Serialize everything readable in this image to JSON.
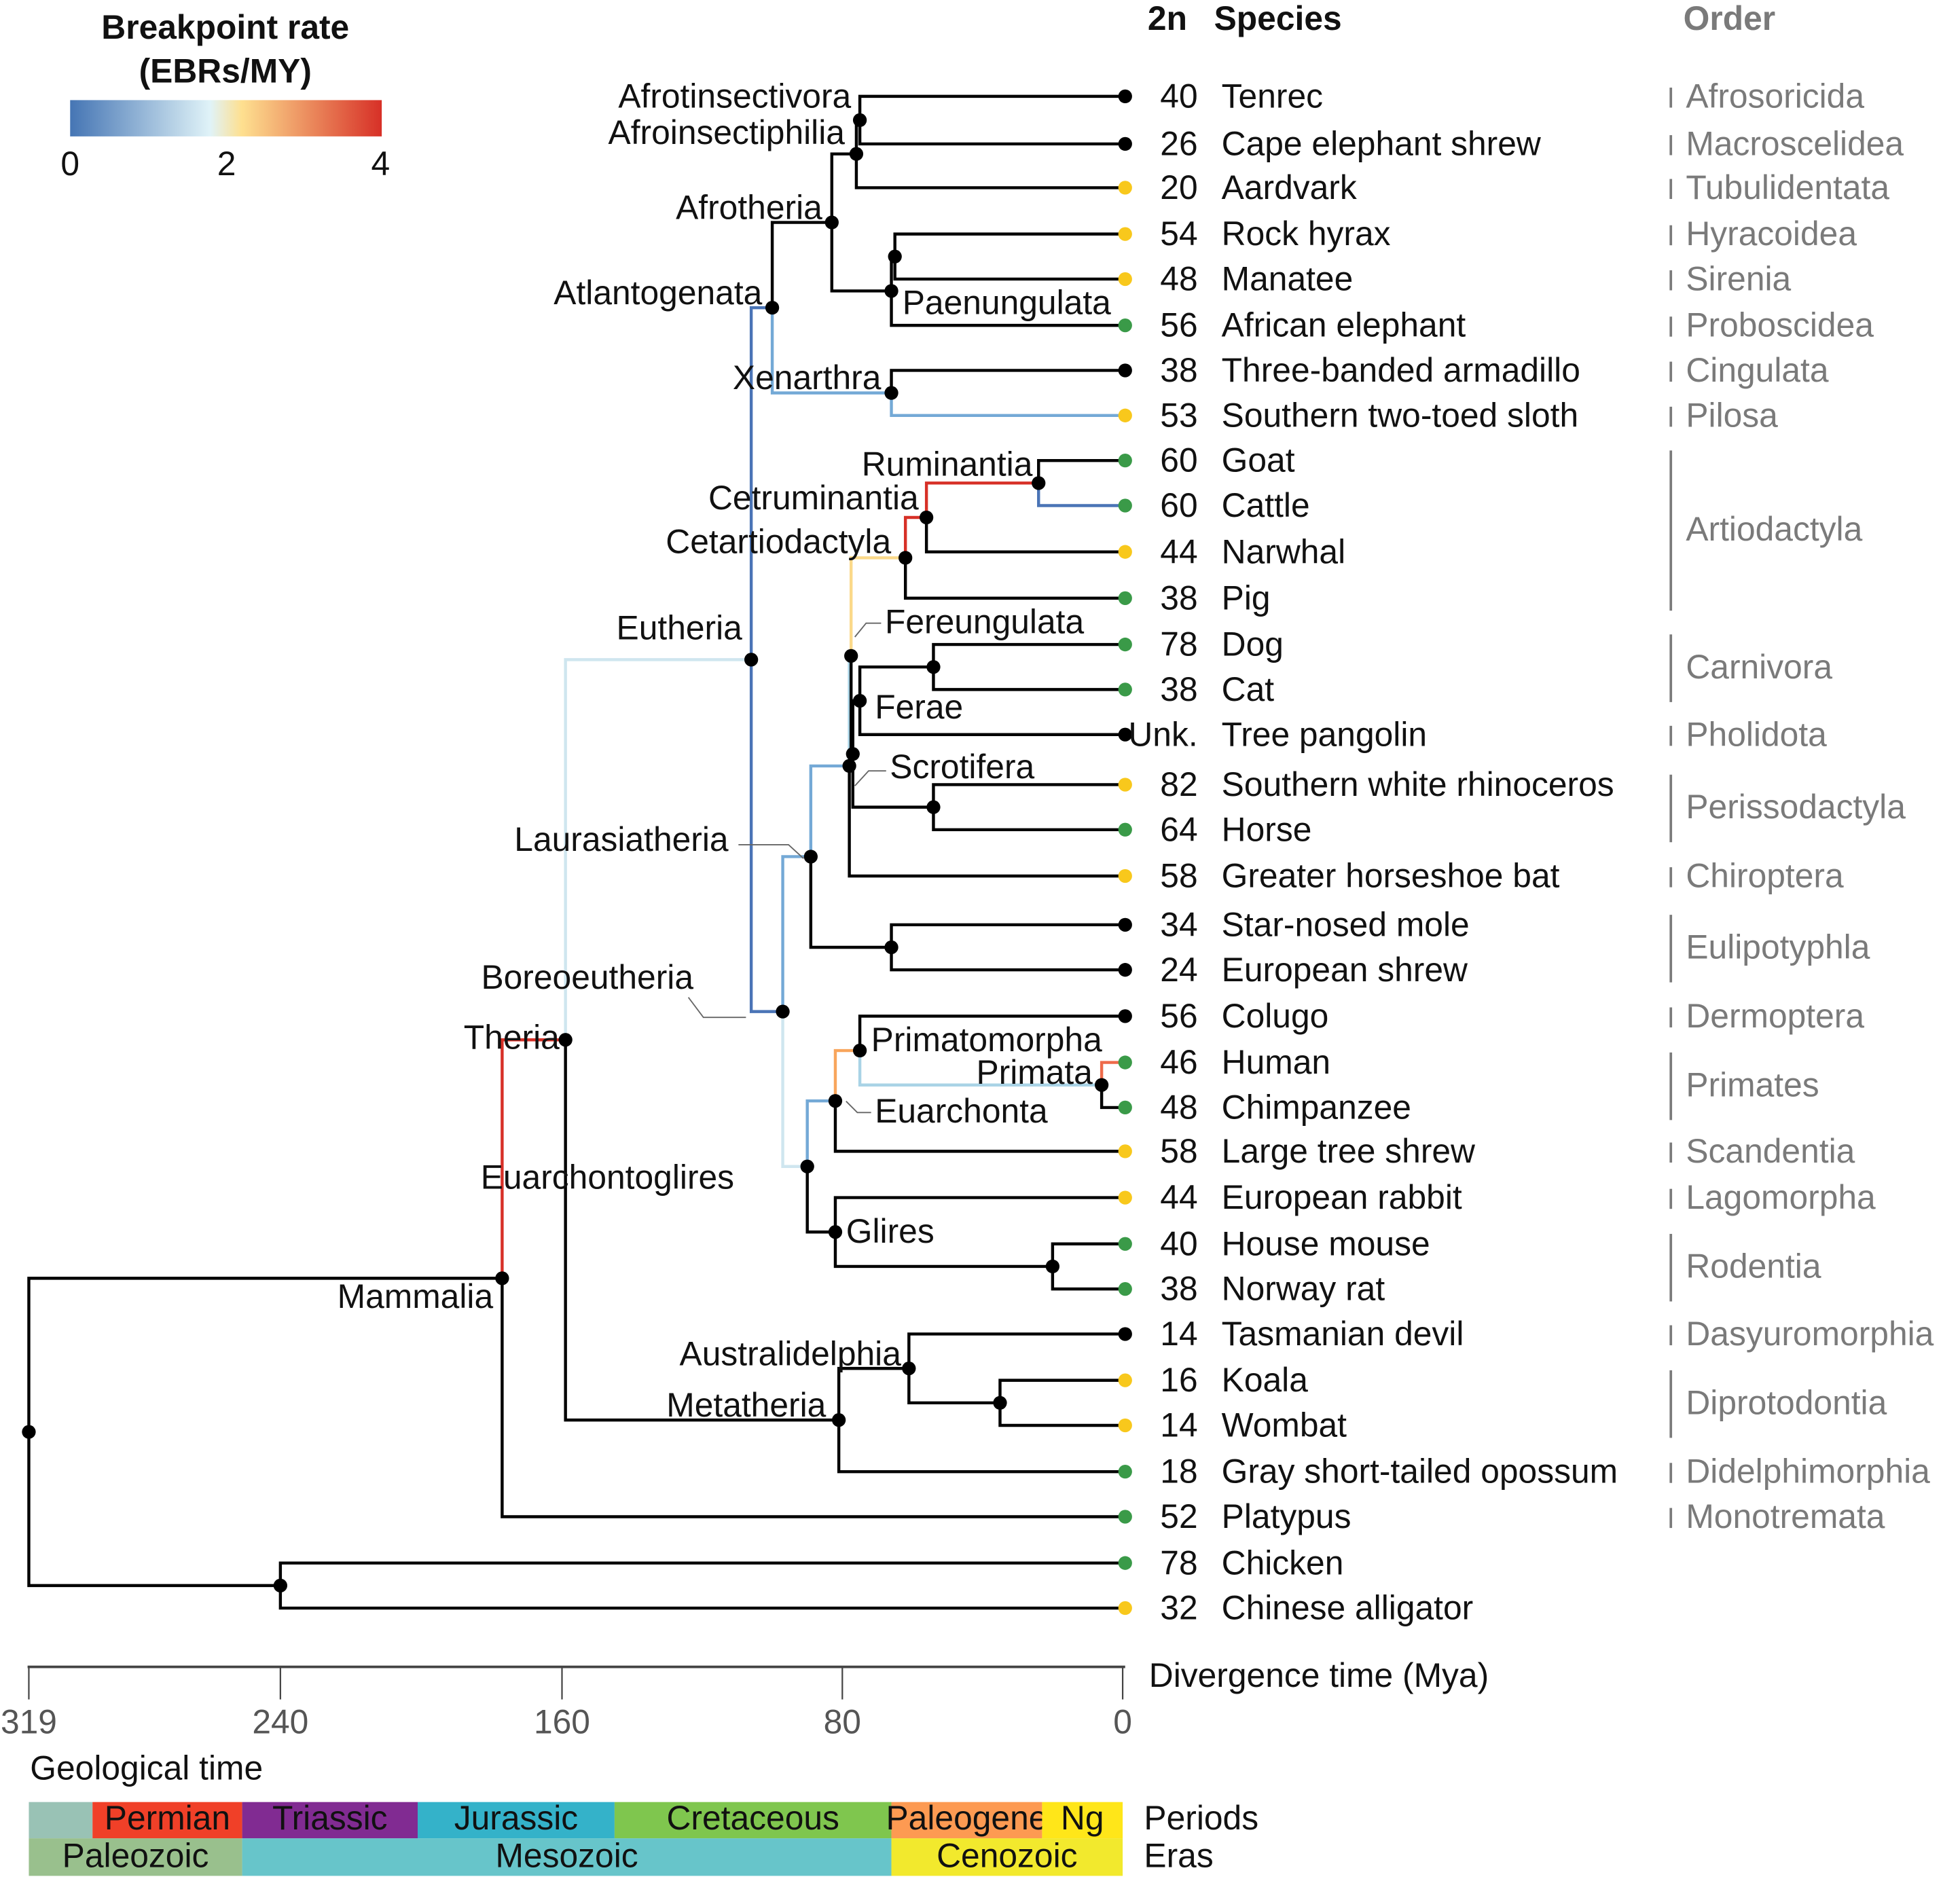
{
  "legend": {
    "title_line1": "Breakpoint rate",
    "title_line2": "(EBRs/MY)",
    "ticks": [
      "0",
      "2",
      "4"
    ],
    "gradient_colors": [
      "#4575b4",
      "#e0f3f8",
      "#fee090",
      "#d73027"
    ]
  },
  "headers": {
    "chromosomes": "2n",
    "species": "Species",
    "order": "Order"
  },
  "leaf_dot_colors": {
    "green": "#3a9a48",
    "yellow": "#f8c81c",
    "black": "#000000"
  },
  "leaves": [
    {
      "n": "40",
      "name": "Tenrec",
      "dot": "black"
    },
    {
      "n": "26",
      "name": "Cape elephant shrew",
      "dot": "black"
    },
    {
      "n": "20",
      "name": "Aardvark",
      "dot": "yellow"
    },
    {
      "n": "54",
      "name": "Rock hyrax",
      "dot": "yellow"
    },
    {
      "n": "48",
      "name": "Manatee",
      "dot": "yellow"
    },
    {
      "n": "56",
      "name": "African elephant",
      "dot": "green"
    },
    {
      "n": "38",
      "name": "Three-banded armadillo",
      "dot": "black"
    },
    {
      "n": "53",
      "name": "Southern two-toed sloth",
      "dot": "yellow"
    },
    {
      "n": "60",
      "name": "Goat",
      "dot": "green"
    },
    {
      "n": "60",
      "name": "Cattle",
      "dot": "green"
    },
    {
      "n": "44",
      "name": "Narwhal",
      "dot": "yellow"
    },
    {
      "n": "38",
      "name": "Pig",
      "dot": "green"
    },
    {
      "n": "78",
      "name": "Dog",
      "dot": "green"
    },
    {
      "n": "38",
      "name": "Cat",
      "dot": "green"
    },
    {
      "n": "Unk.",
      "name": "Tree pangolin",
      "dot": "black"
    },
    {
      "n": "82",
      "name": "Southern white rhinoceros",
      "dot": "yellow"
    },
    {
      "n": "64",
      "name": "Horse",
      "dot": "green"
    },
    {
      "n": "58",
      "name": "Greater horseshoe bat",
      "dot": "yellow"
    },
    {
      "n": "34",
      "name": "Star-nosed mole",
      "dot": "black"
    },
    {
      "n": "24",
      "name": "European shrew",
      "dot": "black"
    },
    {
      "n": "56",
      "name": "Colugo",
      "dot": "black"
    },
    {
      "n": "46",
      "name": "Human",
      "dot": "green"
    },
    {
      "n": "48",
      "name": "Chimpanzee",
      "dot": "green"
    },
    {
      "n": "58",
      "name": "Large tree shrew",
      "dot": "yellow"
    },
    {
      "n": "44",
      "name": "European rabbit",
      "dot": "yellow"
    },
    {
      "n": "40",
      "name": "House mouse",
      "dot": "green"
    },
    {
      "n": "38",
      "name": "Norway rat",
      "dot": "green"
    },
    {
      "n": "14",
      "name": "Tasmanian devil",
      "dot": "black"
    },
    {
      "n": "16",
      "name": "Koala",
      "dot": "yellow"
    },
    {
      "n": "14",
      "name": "Wombat",
      "dot": "yellow"
    },
    {
      "n": "18",
      "name": "Gray short-tailed opossum",
      "dot": "green"
    },
    {
      "n": "52",
      "name": "Platypus",
      "dot": "green"
    },
    {
      "n": "78",
      "name": "Chicken",
      "dot": "green"
    },
    {
      "n": "32",
      "name": "Chinese alligator",
      "dot": "yellow"
    }
  ],
  "orders": [
    {
      "name": "Afrosoricida",
      "from": 0,
      "to": 0
    },
    {
      "name": "Macroscelidea",
      "from": 1,
      "to": 1
    },
    {
      "name": "Tubulidentata",
      "from": 2,
      "to": 2
    },
    {
      "name": "Hyracoidea",
      "from": 3,
      "to": 3
    },
    {
      "name": "Sirenia",
      "from": 4,
      "to": 4
    },
    {
      "name": "Proboscidea",
      "from": 5,
      "to": 5
    },
    {
      "name": "Cingulata",
      "from": 6,
      "to": 6
    },
    {
      "name": "Pilosa",
      "from": 7,
      "to": 7
    },
    {
      "name": "Artiodactyla",
      "from": 8,
      "to": 11
    },
    {
      "name": "Carnivora",
      "from": 12,
      "to": 13
    },
    {
      "name": "Pholidota",
      "from": 14,
      "to": 14
    },
    {
      "name": "Perissodactyla",
      "from": 15,
      "to": 16
    },
    {
      "name": "Chiroptera",
      "from": 17,
      "to": 17
    },
    {
      "name": "Eulipotyphla",
      "from": 18,
      "to": 19
    },
    {
      "name": "Dermoptera",
      "from": 20,
      "to": 20
    },
    {
      "name": "Primates",
      "from": 21,
      "to": 22
    },
    {
      "name": "Scandentia",
      "from": 23,
      "to": 23
    },
    {
      "name": "Lagomorpha",
      "from": 24,
      "to": 24
    },
    {
      "name": "Rodentia",
      "from": 25,
      "to": 26
    },
    {
      "name": "Dasyuromorphia",
      "from": 27,
      "to": 27
    },
    {
      "name": "Diprotodontia",
      "from": 28,
      "to": 29
    },
    {
      "name": "Didelphimorphia",
      "from": 30,
      "to": 30
    },
    {
      "name": "Monotremata",
      "from": 31,
      "to": 31
    }
  ],
  "tree": {
    "id": "root",
    "age": 319,
    "children": [
      {
        "id": "mammalia",
        "label": "Mammalia",
        "age": 177,
        "children": [
          {
            "id": "theria",
            "label": "Theria",
            "age": 159,
            "color": "#d73027",
            "children": [
              {
                "id": "eutheria",
                "label": "Eutheria",
                "age": 106,
                "color": "#cfe6ef",
                "children": [
                  {
                    "id": "atlantogenata",
                    "label": "Atlantogenata",
                    "age": 100,
                    "color": "#4a74b6",
                    "children": [
                      {
                        "id": "afrotheria",
                        "label": "Afrotheria",
                        "age": 83,
                        "children": [
                          {
                            "id": "afroinsectiphilia",
                            "label": "Afroinsectiphilia",
                            "age": 76,
                            "children": [
                              {
                                "id": "afrotinsectivora",
                                "label": "Afrotinsectivora",
                                "age": 75,
                                "children": [
                                  {
                                    "leaf": 0
                                  },
                                  {
                                    "leaf": 1
                                  }
                                ]
                              },
                              {
                                "leaf": 2
                              }
                            ]
                          },
                          {
                            "id": "paenungulata",
                            "label": "Paenungulata",
                            "age": 66,
                            "children": [
                              {
                                "id": "hyrax_manatee",
                                "age": 65,
                                "children": [
                                  {
                                    "leaf": 3
                                  },
                                  {
                                    "leaf": 4
                                  }
                                ]
                              },
                              {
                                "leaf": 5
                              }
                            ]
                          }
                        ]
                      },
                      {
                        "id": "xenarthra",
                        "label": "Xenarthra",
                        "age": 66,
                        "color": "#74a9d6",
                        "children": [
                          {
                            "leaf": 6
                          },
                          {
                            "leaf": 7,
                            "color": "#74a9d6"
                          }
                        ]
                      }
                    ]
                  },
                  {
                    "id": "boreoeutheria",
                    "label": "Boreoeutheria",
                    "age": 97,
                    "color": "#4a74b6",
                    "children": [
                      {
                        "id": "laurasiatheria",
                        "label": "Laurasiatheria",
                        "age": 89,
                        "color": "#74a9d6",
                        "children": [
                          {
                            "id": "scrotifera",
                            "label": "Scrotifera",
                            "age": 78,
                            "color": "#74a9d6",
                            "children": [
                              {
                                "id": "fereungulata",
                                "label": "Fereungulata",
                                "age": 77.5,
                                "color": "#a9d3e6",
                                "children": [
                                  {
                                    "id": "cetartiodactyla",
                                    "label": "Cetartiodactyla",
                                    "age": 62,
                                    "color": "#fbd98a",
                                    "children": [
                                      {
                                        "id": "cetruminantia",
                                        "label": "Cetruminantia",
                                        "age": 56,
                                        "color": "#d73027",
                                        "children": [
                                          {
                                            "id": "ruminantia",
                                            "label": "Ruminantia",
                                            "age": 24,
                                            "color": "#d73027",
                                            "children": [
                                              {
                                                "leaf": 8
                                              },
                                              {
                                                "leaf": 9,
                                                "color": "#4a74b6"
                                              }
                                            ]
                                          },
                                          {
                                            "leaf": 10
                                          }
                                        ]
                                      },
                                      {
                                        "leaf": 11
                                      }
                                    ]
                                  },
                                  {
                                    "id": "zooamata",
                                    "age": 77,
                                    "children": [
                                      {
                                        "id": "ferae",
                                        "label": "Ferae",
                                        "age": 75,
                                        "children": [
                                          {
                                            "id": "carnivora",
                                            "age": 54,
                                            "children": [
                                              {
                                                "leaf": 12
                                              },
                                              {
                                                "leaf": 13
                                              }
                                            ]
                                          },
                                          {
                                            "leaf": 14
                                          }
                                        ]
                                      },
                                      {
                                        "id": "perissodactyla",
                                        "age": 54,
                                        "children": [
                                          {
                                            "leaf": 15
                                          },
                                          {
                                            "leaf": 16
                                          }
                                        ]
                                      }
                                    ]
                                  }
                                ]
                              },
                              {
                                "leaf": 17
                              }
                            ]
                          },
                          {
                            "id": "eulipotyphla",
                            "age": 66,
                            "children": [
                              {
                                "leaf": 18
                              },
                              {
                                "leaf": 19
                              }
                            ]
                          }
                        ]
                      },
                      {
                        "id": "euarchontoglires",
                        "label": "Euarchontoglires",
                        "age": 90,
                        "color": "#cfe6ef",
                        "children": [
                          {
                            "id": "euarchonta",
                            "label": "Euarchonta",
                            "age": 82,
                            "color": "#74a9d6",
                            "children": [
                              {
                                "id": "primatomorpha",
                                "label": "Primatomorpha",
                                "age": 75,
                                "color": "#f8a55c",
                                "children": [
                                  {
                                    "leaf": 20
                                  },
                                  {
                                    "id": "primata",
                                    "label": "Primata",
                                    "age": 6,
                                    "color": "#a9d3e6",
                                    "children": [
                                      {
                                        "leaf": 21,
                                        "color": "#ee6a4a"
                                      },
                                      {
                                        "leaf": 22
                                      }
                                    ]
                                  }
                                ]
                              },
                              {
                                "leaf": 23
                              }
                            ]
                          },
                          {
                            "id": "glires",
                            "label": "Glires",
                            "age": 82,
                            "children": [
                              {
                                "leaf": 24
                              },
                              {
                                "id": "rodentia",
                                "age": 20,
                                "children": [
                                  {
                                    "leaf": 25
                                  },
                                  {
                                    "leaf": 26
                                  }
                                ]
                              }
                            ]
                          }
                        ]
                      }
                    ]
                  }
                ]
              },
              {
                "id": "metatheria",
                "label": "Metatheria",
                "age": 81,
                "children": [
                  {
                    "id": "australidelphia",
                    "label": "Australidelphia",
                    "age": 61,
                    "children": [
                      {
                        "leaf": 27
                      },
                      {
                        "id": "diprotodontia",
                        "age": 35,
                        "children": [
                          {
                            "leaf": 28
                          },
                          {
                            "leaf": 29
                          }
                        ]
                      }
                    ]
                  },
                  {
                    "leaf": 30
                  }
                ]
              }
            ]
          },
          {
            "leaf": 31
          }
        ]
      },
      {
        "id": "sauropsida",
        "age": 240,
        "children": [
          {
            "leaf": 32
          },
          {
            "leaf": 33
          }
        ]
      }
    ]
  },
  "axis": {
    "title": "Divergence time (Mya)",
    "ticks": [
      "319",
      "240",
      "160",
      "80",
      "0"
    ]
  },
  "geology": {
    "title": "Geological time",
    "periods_label": "Periods",
    "eras_label": "Eras",
    "periods": [
      {
        "name": "",
        "from": 319,
        "to": 299,
        "color": "#99c2b5"
      },
      {
        "name": "Permian",
        "from": 299,
        "to": 252,
        "color": "#f04028"
      },
      {
        "name": "Triassic",
        "from": 252,
        "to": 201,
        "color": "#812b92"
      },
      {
        "name": "Jurassic",
        "from": 201,
        "to": 145,
        "color": "#34b2c9"
      },
      {
        "name": "Cretaceous",
        "from": 145,
        "to": 66,
        "color": "#7fc64e"
      },
      {
        "name": "Paleogene",
        "from": 66,
        "to": 23,
        "color": "#fd9a52"
      },
      {
        "name": "Ng",
        "from": 23,
        "to": 0,
        "color": "#ffe619"
      }
    ],
    "eras": [
      {
        "name": "Paleozoic",
        "from": 319,
        "to": 252,
        "color": "#99c08d"
      },
      {
        "name": "Mesozoic",
        "from": 252,
        "to": 66,
        "color": "#67c5ca"
      },
      {
        "name": "Cenozoic",
        "from": 66,
        "to": 0,
        "color": "#f2e92d"
      }
    ]
  }
}
